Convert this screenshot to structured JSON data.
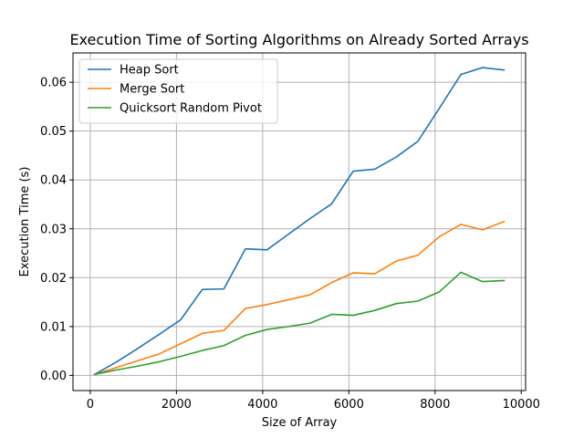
{
  "chart_data": {
    "type": "line",
    "title": "Execution Time of Sorting Algorithms on Already Sorted Arrays",
    "xlabel": "Size of Array",
    "ylabel": "Execution Time (s)",
    "xlim": [
      -400,
      10100
    ],
    "ylim": [
      -0.0031,
      0.066
    ],
    "xticks": [
      0,
      2000,
      4000,
      6000,
      8000,
      10000
    ],
    "xtick_labels": [
      "0",
      "2000",
      "4000",
      "6000",
      "8000",
      "10000"
    ],
    "yticks": [
      0,
      0.01,
      0.02,
      0.03,
      0.04,
      0.05,
      0.06
    ],
    "ytick_labels": [
      "0.00",
      "0.01",
      "0.02",
      "0.03",
      "0.04",
      "0.05",
      "0.06"
    ],
    "grid": true,
    "legend_position": "top-left",
    "x": [
      100,
      600,
      1100,
      1600,
      2100,
      2600,
      3100,
      3600,
      4100,
      4600,
      5100,
      5600,
      6100,
      6600,
      7100,
      7600,
      8100,
      8600,
      9100,
      9600
    ],
    "series": [
      {
        "name": "Heap Sort",
        "color": "#1f77b4",
        "values": [
          0.0002,
          0.0027,
          0.0055,
          0.0084,
          0.0114,
          0.0176,
          0.0177,
          0.0259,
          0.0257,
          0.0289,
          0.0321,
          0.0351,
          0.0418,
          0.0422,
          0.0447,
          0.0479,
          0.0547,
          0.0616,
          0.063,
          0.0625
        ]
      },
      {
        "name": "Merge Sort",
        "color": "#ff7f0e",
        "values": [
          0.0002,
          0.0016,
          0.003,
          0.0044,
          0.0065,
          0.0086,
          0.0092,
          0.0137,
          0.0145,
          0.0155,
          0.0165,
          0.019,
          0.021,
          0.0208,
          0.0234,
          0.0246,
          0.0284,
          0.0309,
          0.0298,
          0.0315
        ]
      },
      {
        "name": "Quicksort Random Pivot",
        "color": "#2ca02c",
        "values": [
          0.0002,
          0.0011,
          0.0019,
          0.0028,
          0.0039,
          0.0051,
          0.0061,
          0.0082,
          0.0094,
          0.01,
          0.0107,
          0.0125,
          0.0123,
          0.0133,
          0.0147,
          0.0152,
          0.0171,
          0.0211,
          0.0192,
          0.0194
        ]
      }
    ]
  }
}
